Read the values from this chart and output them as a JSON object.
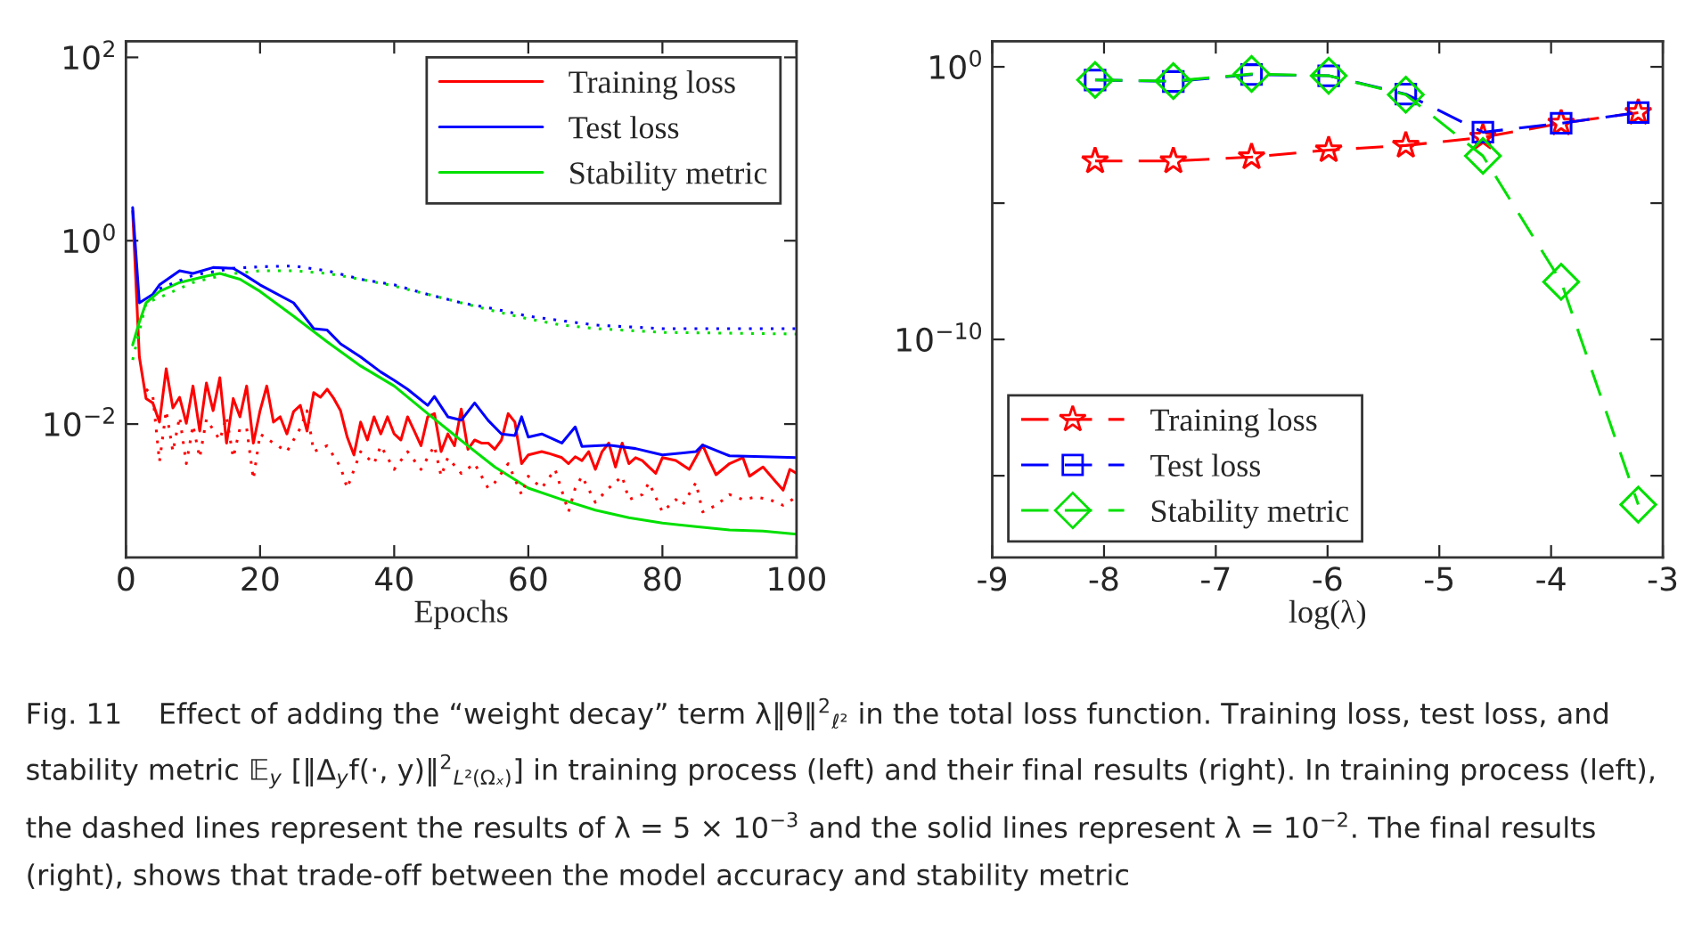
{
  "chart_data": [
    {
      "type": "line",
      "xlabel": "Epochs",
      "xlim": [
        0,
        100
      ],
      "xticks": [
        0,
        20,
        40,
        60,
        80,
        100
      ],
      "log": "y",
      "ylim": [
        0.00035,
        150
      ],
      "yticks": [
        {
          "value": 0.01,
          "label": "10$^{−2}$"
        },
        {
          "value": 1,
          "label": "10$^{0}$"
        },
        {
          "value": 100,
          "label": "10$^{2}$"
        }
      ],
      "legend": "top right",
      "grid": false,
      "marker": "none",
      "series": [
        {
          "name": "Training loss",
          "color": "#ff0000",
          "line_style": "solid",
          "x": [
            1,
            2,
            3,
            4,
            5,
            6,
            7,
            8,
            9,
            10,
            11,
            12,
            13,
            14,
            15,
            16,
            17,
            18,
            19,
            20,
            21,
            22,
            23,
            24,
            25,
            26,
            27,
            28,
            29,
            30,
            31,
            32,
            33,
            34,
            35,
            36,
            37,
            38,
            39,
            40,
            41,
            42,
            43,
            44,
            45,
            46,
            47,
            48,
            49,
            50,
            51,
            52,
            53,
            54,
            55,
            56,
            57,
            58,
            59,
            60,
            62,
            63,
            65,
            66,
            67,
            68,
            69,
            70,
            71,
            72,
            73,
            74,
            75,
            76,
            77,
            78,
            79,
            80,
            82,
            84,
            86,
            87,
            88,
            90,
            92,
            93,
            95,
            97,
            98,
            99,
            100
          ],
          "values": [
            2.1,
            0.054,
            0.019,
            0.017,
            0.0105,
            0.04,
            0.015,
            0.0196,
            0.0102,
            0.026,
            0.0084,
            0.028,
            0.014,
            0.032,
            0.0062,
            0.019,
            0.012,
            0.026,
            0.0062,
            0.014,
            0.026,
            0.0105,
            0.012,
            0.0078,
            0.0137,
            0.016,
            0.0084,
            0.022,
            0.0196,
            0.024,
            0.019,
            0.014,
            0.0072,
            0.0046,
            0.0105,
            0.0067,
            0.012,
            0.0078,
            0.012,
            0.0078,
            0.0067,
            0.012,
            0.0084,
            0.0058,
            0.012,
            0.013,
            0.005,
            0.0078,
            0.0058,
            0.0146,
            0.0053,
            0.0067,
            0.0062,
            0.0062,
            0.0053,
            0.0067,
            0.013,
            0.0105,
            0.0037,
            0.0046,
            0.005,
            0.0048,
            0.0043,
            0.0037,
            0.0044,
            0.004,
            0.005,
            0.0032,
            0.005,
            0.0062,
            0.0034,
            0.0062,
            0.0037,
            0.0043,
            0.004,
            0.0034,
            0.0029,
            0.0043,
            0.004,
            0.0032,
            0.0059,
            0.004,
            0.0028,
            0.0037,
            0.0043,
            0.0027,
            0.0034,
            0.0023,
            0.0019,
            0.0032,
            0.0029
          ]
        },
        {
          "name": "Test loss",
          "color": "#0000ff",
          "line_style": "solid",
          "x": [
            1,
            2,
            4,
            5,
            8,
            10,
            13,
            16,
            18,
            20,
            25,
            28,
            30,
            32,
            35,
            38,
            40,
            42,
            45,
            46,
            48,
            50,
            52,
            54,
            56,
            58,
            59,
            60,
            62,
            65,
            67,
            68,
            72,
            76,
            80,
            85,
            86,
            90,
            100
          ],
          "values": [
            2.3,
            0.21,
            0.26,
            0.33,
            0.47,
            0.44,
            0.51,
            0.5,
            0.41,
            0.33,
            0.21,
            0.11,
            0.106,
            0.075,
            0.054,
            0.037,
            0.03,
            0.024,
            0.016,
            0.02,
            0.012,
            0.011,
            0.017,
            0.011,
            0.0078,
            0.0075,
            0.012,
            0.0072,
            0.0078,
            0.0062,
            0.0093,
            0.0057,
            0.0059,
            0.0054,
            0.0046,
            0.005,
            0.0059,
            0.0045,
            0.0043
          ]
        },
        {
          "name": "Stability metric",
          "color": "#00e000",
          "line_style": "solid",
          "x": [
            1,
            2,
            3,
            5,
            8,
            12,
            14,
            17,
            20,
            25,
            30,
            35,
            40,
            45,
            50,
            55,
            60,
            65,
            70,
            75,
            80,
            85,
            90,
            95,
            100
          ],
          "values": [
            0.073,
            0.13,
            0.21,
            0.28,
            0.35,
            0.41,
            0.44,
            0.38,
            0.28,
            0.15,
            0.079,
            0.043,
            0.026,
            0.013,
            0.0066,
            0.0034,
            0.002,
            0.0015,
            0.00115,
            0.00095,
            0.00083,
            0.00076,
            0.0007,
            0.00068,
            0.00063
          ]
        },
        {
          "color": "#ff0000",
          "line_style": "dotted",
          "x": [
            3,
            4,
            5,
            6,
            7,
            8,
            9,
            10,
            11,
            12,
            14,
            15,
            16,
            17,
            18,
            19,
            20,
            22,
            24,
            26,
            27,
            28,
            30,
            32,
            33,
            35,
            37,
            38,
            40,
            42,
            44,
            46,
            47,
            48,
            50,
            52,
            54,
            55,
            57,
            59,
            60,
            62,
            64,
            66,
            67,
            68,
            70,
            72,
            74,
            75,
            77,
            78,
            80,
            82,
            83,
            85,
            86,
            88,
            90,
            92,
            94,
            96,
            98,
            100
          ],
          "values": [
            0.024,
            0.0205,
            0.0039,
            0.014,
            0.005,
            0.012,
            0.0037,
            0.0097,
            0.0043,
            0.0113,
            0.0067,
            0.012,
            0.0043,
            0.009,
            0.009,
            0.0025,
            0.0078,
            0.0062,
            0.005,
            0.009,
            0.014,
            0.005,
            0.0058,
            0.0034,
            0.002,
            0.005,
            0.0037,
            0.0058,
            0.0032,
            0.005,
            0.0032,
            0.0058,
            0.0027,
            0.0043,
            0.0029,
            0.0037,
            0.002,
            0.0023,
            0.0037,
            0.0017,
            0.0027,
            0.002,
            0.0032,
            0.0011,
            0.002,
            0.0027,
            0.0014,
            0.002,
            0.0027,
            0.0015,
            0.0017,
            0.0023,
            0.0011,
            0.0015,
            0.0013,
            0.0023,
            0.0011,
            0.0013,
            0.0017,
            0.0015,
            0.0016,
            0.0015,
            0.0013,
            0.0016
          ]
        },
        {
          "color": "#0000ff",
          "line_style": "dotted",
          "x": [
            5,
            10,
            16,
            20,
            25,
            30,
            35,
            40,
            45,
            50,
            55,
            60,
            70,
            80,
            90,
            100
          ],
          "values": [
            0.3,
            0.42,
            0.5,
            0.52,
            0.53,
            0.47,
            0.38,
            0.33,
            0.26,
            0.21,
            0.18,
            0.15,
            0.12,
            0.11,
            0.11,
            0.11
          ]
        },
        {
          "color": "#00e000",
          "line_style": "dotted",
          "x": [
            1,
            3,
            5,
            10,
            15,
            20,
            25,
            30,
            35,
            40,
            45,
            50,
            55,
            60,
            65,
            70,
            80,
            90,
            100
          ],
          "values": [
            0.05,
            0.21,
            0.24,
            0.35,
            0.43,
            0.47,
            0.47,
            0.44,
            0.38,
            0.32,
            0.26,
            0.21,
            0.17,
            0.14,
            0.12,
            0.11,
            0.1,
            0.098,
            0.096
          ]
        }
      ],
      "annotations": [
        "Fig. 11    Effect of adding the “weight decay” term λ‖θ‖$^{2}$$_{ℓ²}$ in the total loss function. Training loss, test loss, and stability metric 𝔼$_{y}$ [‖Δ$_{y}$f(·, y)‖$^{2}$$_{L²(Ωₓ)}$] in training process (left) and their final results (right). In training process (left), the dashed lines represent the results of λ = 5 × 10$^{−3}$ and the solid lines represent λ = 10$^{−2}$. The final results (right), shows that trade-off between the model accuracy and stability metric"
      ]
    },
    {
      "type": "line",
      "xlabel": "log(λ)",
      "xlim": [
        -9,
        -3
      ],
      "xticks": [
        -9,
        -8,
        -7,
        -6,
        -5,
        -4,
        -3
      ],
      "log": "y",
      "ylim": [
        1e-18,
        8.7
      ],
      "yticks": [
        {
          "value": 1e-15,
          "label": null
        },
        {
          "value": 1e-10,
          "label": "10$^{−10}$"
        },
        {
          "value": 1e-05,
          "label": null
        },
        {
          "value": 1,
          "label": "10$^{0}$"
        }
      ],
      "legend": "bottom left",
      "grid": false,
      "line_style": "dashed",
      "x": [
        -8.08,
        -7.38,
        -6.68,
        -5.99,
        -5.3,
        -4.61,
        -3.91,
        -3.22
      ],
      "series": [
        {
          "name": "Training loss",
          "color": "#ff0000",
          "marker": "star",
          "values": [
            0.00035,
            0.00035,
            0.00049,
            0.00089,
            0.0013,
            0.0026,
            0.0085,
            0.021
          ]
        },
        {
          "name": "Test loss",
          "color": "#0000ff",
          "marker": "square",
          "values": [
            0.33,
            0.29,
            0.52,
            0.47,
            0.1,
            0.004,
            0.0085,
            0.021
          ]
        },
        {
          "name": "Stability metric",
          "color": "#00e000",
          "marker": "diamond",
          "values": [
            0.33,
            0.3,
            0.55,
            0.47,
            0.095,
            0.00054,
            1.3e-08,
            8.7e-17
          ]
        }
      ]
    }
  ]
}
